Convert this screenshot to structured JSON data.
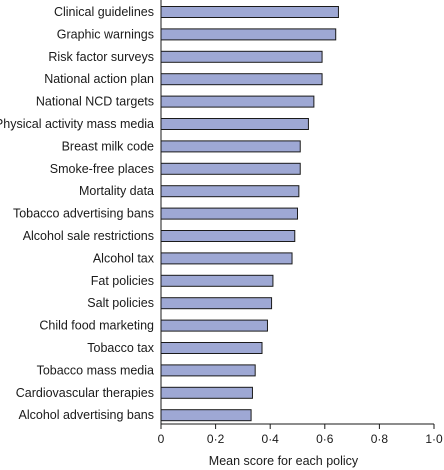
{
  "chart_data": {
    "type": "bar",
    "orientation": "horizontal",
    "categories": [
      "Clinical guidelines",
      "Graphic warnings",
      "Risk factor surveys",
      "National action plan",
      "National NCD targets",
      "Physical activity mass media",
      "Breast milk code",
      "Smoke-free places",
      "Mortality data",
      "Tobacco advertising bans",
      "Alcohol sale restrictions",
      "Alcohol tax",
      "Fat policies",
      "Salt policies",
      "Child food marketing",
      "Tobacco tax",
      "Tobacco mass media",
      "Cardiovascular therapies",
      "Alcohol advertising bans"
    ],
    "values": [
      0.65,
      0.64,
      0.59,
      0.59,
      0.56,
      0.54,
      0.51,
      0.51,
      0.505,
      0.5,
      0.49,
      0.48,
      0.41,
      0.405,
      0.39,
      0.37,
      0.345,
      0.335,
      0.33
    ],
    "xlabel": "Mean score for each policy",
    "ylabel": "",
    "xlim": [
      0,
      1.0
    ],
    "ticks": [
      "0",
      "0·2",
      "0·4",
      "0·6",
      "0·8",
      "1·0"
    ],
    "tick_values": [
      0,
      0.2,
      0.4,
      0.6,
      0.8,
      1.0
    ],
    "grid": false,
    "bar_color": "#9ea8d4",
    "bar_outline_color": "#1a1a1a"
  }
}
